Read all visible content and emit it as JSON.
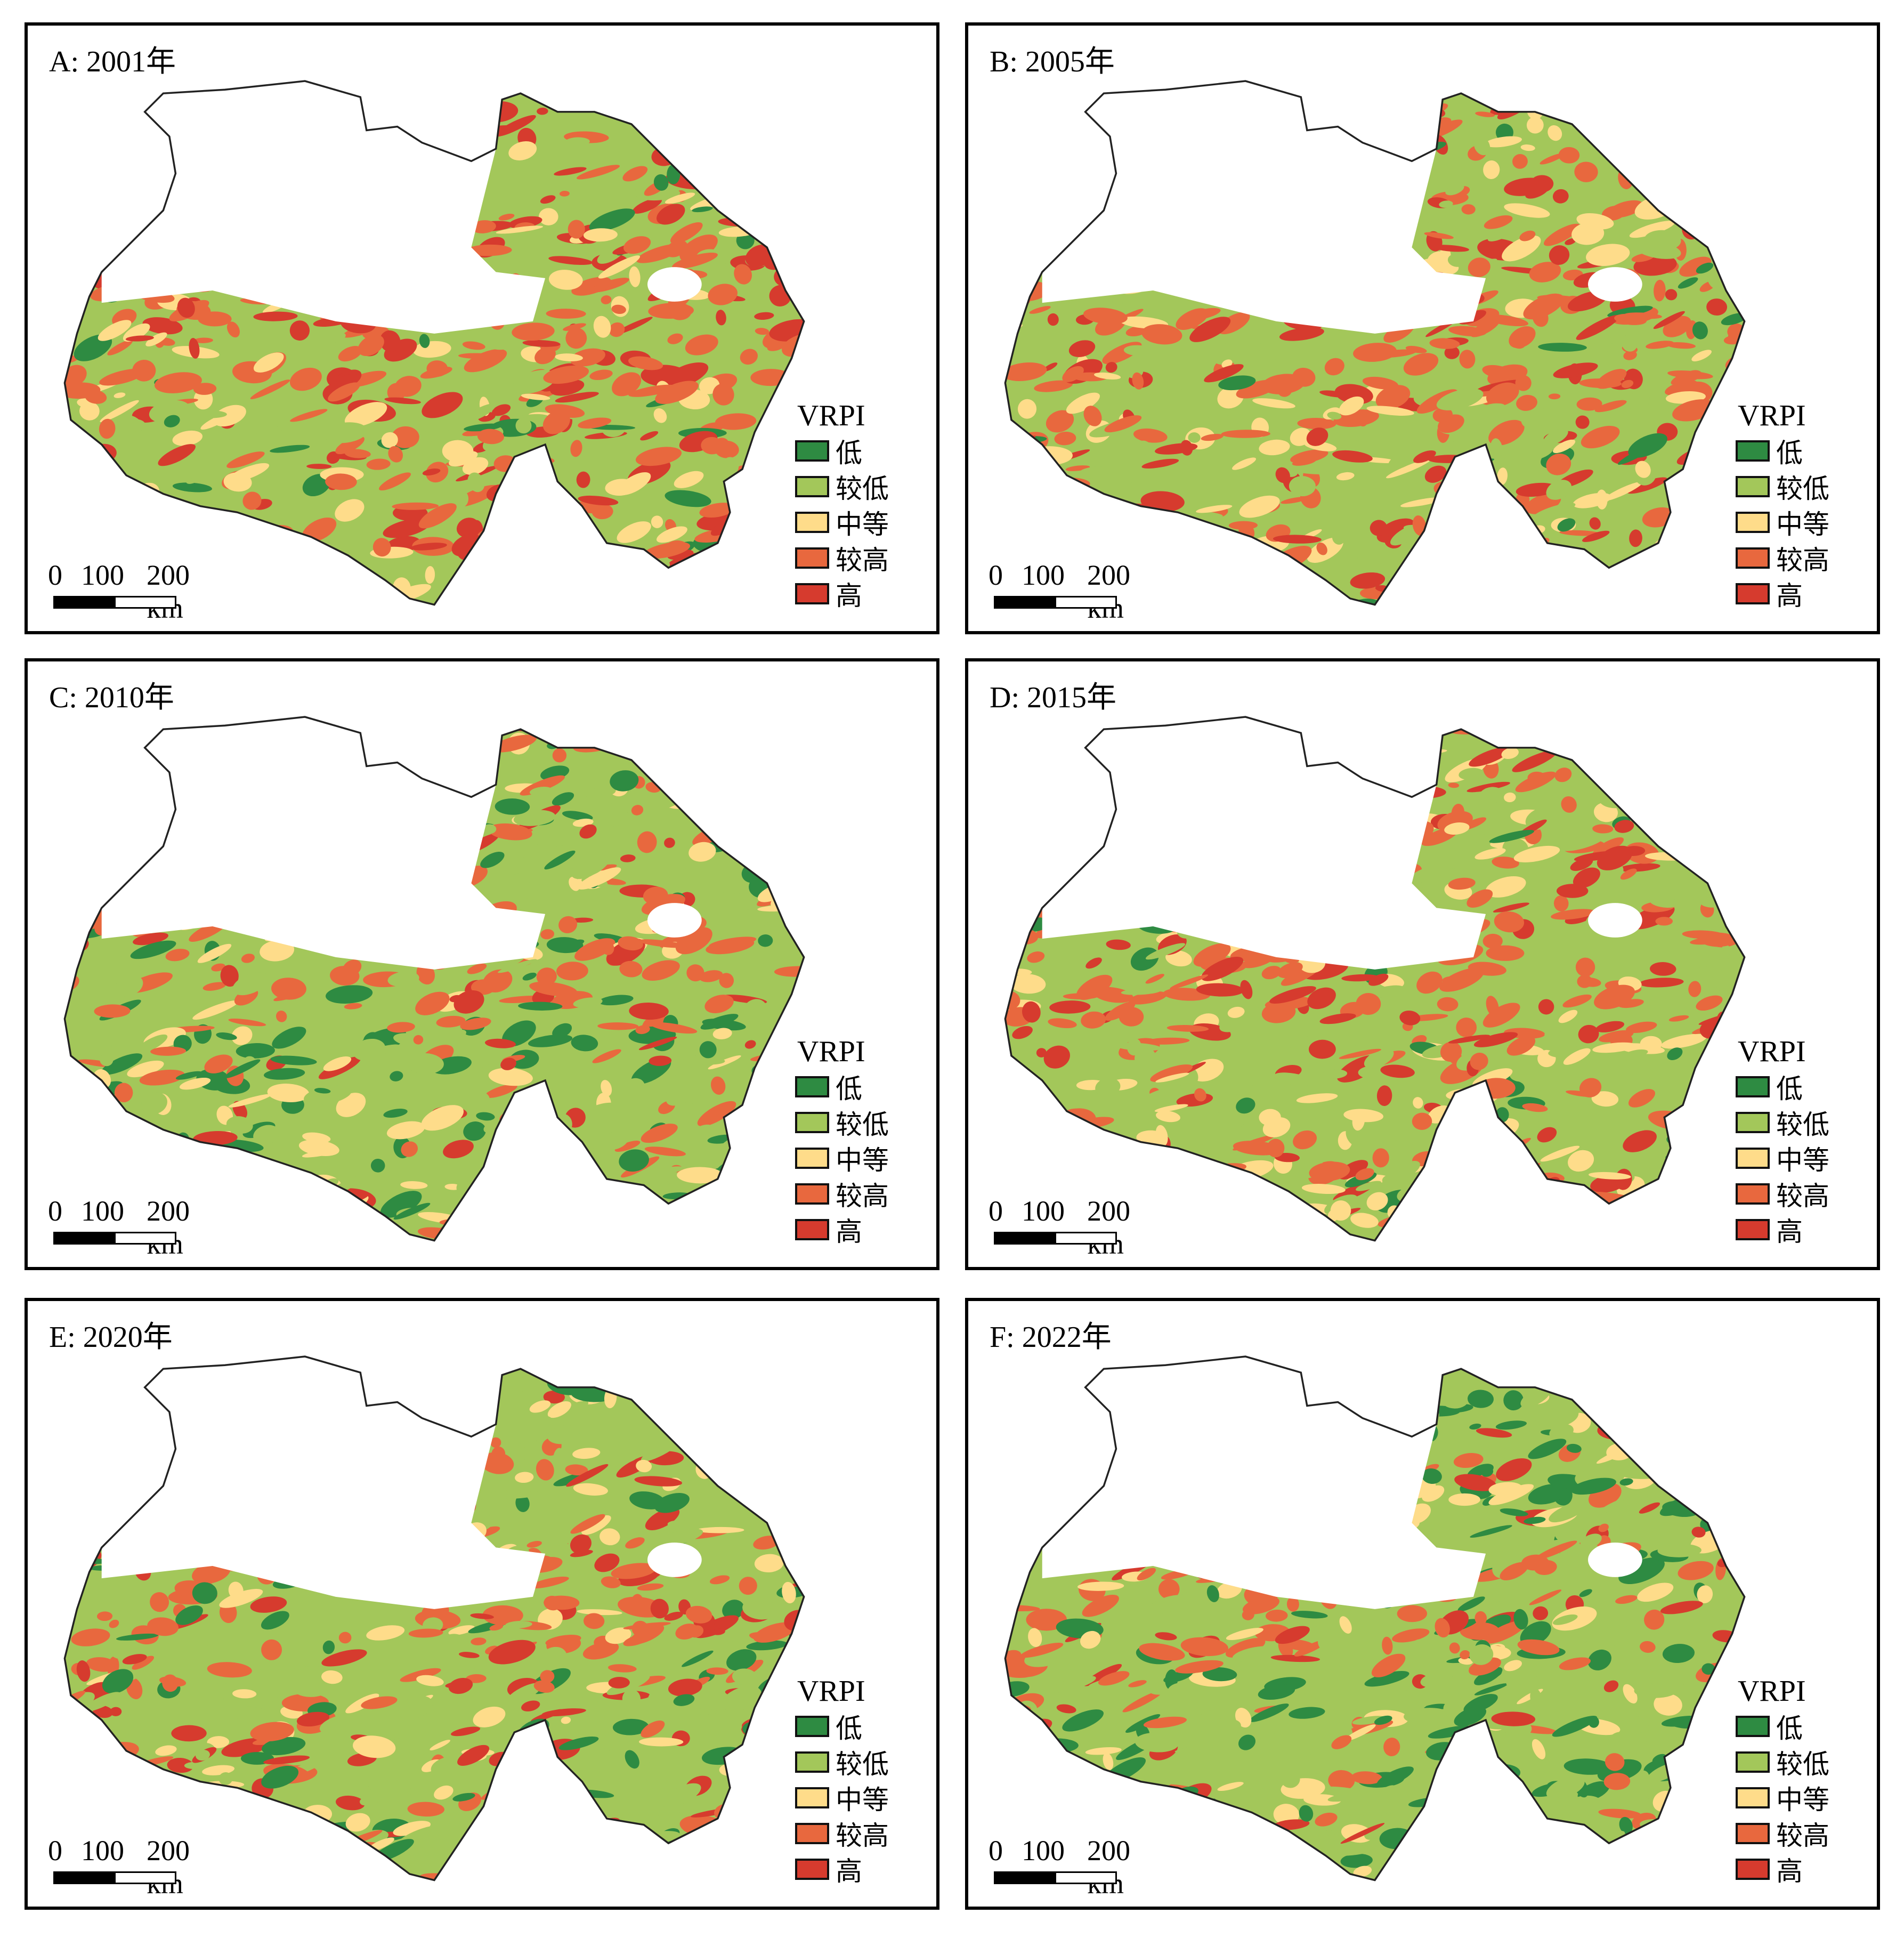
{
  "panels": [
    {
      "title": "A: 2001年"
    },
    {
      "title": "B: 2005年"
    },
    {
      "title": "C: 2010年"
    },
    {
      "title": "D: 2015年"
    },
    {
      "title": "E: 2020年"
    },
    {
      "title": "F: 2022年"
    }
  ],
  "legend": {
    "title": "VRPI",
    "items": [
      {
        "label": "低",
        "color": "#2e8b42"
      },
      {
        "label": "较低",
        "color": "#a3c75a"
      },
      {
        "label": "中等",
        "color": "#fedc8a"
      },
      {
        "label": "较高",
        "color": "#e8683e"
      },
      {
        "label": "高",
        "color": "#d63b2e"
      }
    ]
  },
  "scale_bar": {
    "labels": [
      "0",
      "100",
      "200 km"
    ]
  }
}
